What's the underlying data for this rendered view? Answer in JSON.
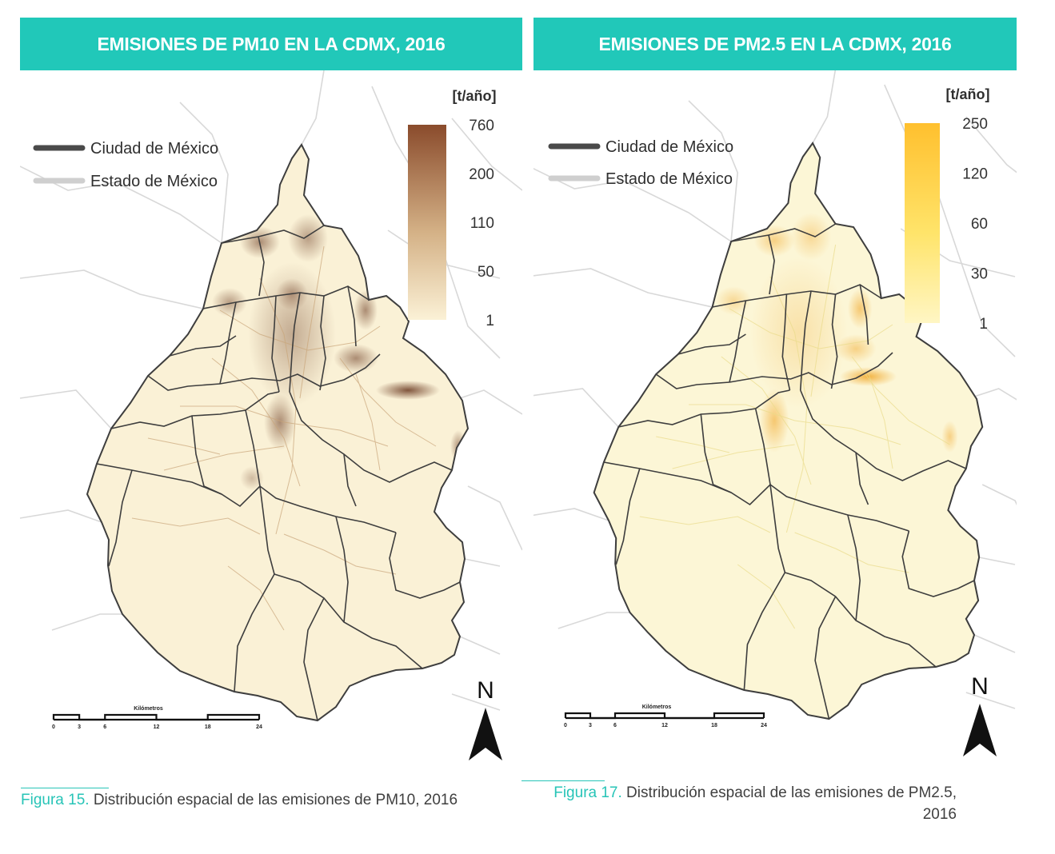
{
  "panels": [
    {
      "id": "pm10",
      "banner": "EMISIONES DE PM10 EN LA CDMX, 2016",
      "legend": {
        "cdmx": "Ciudad de México",
        "edomex": "Estado de México"
      },
      "scale": {
        "unit": "[t/año]",
        "ticks": [
          "760",
          "200",
          "110",
          "50",
          "1"
        ],
        "color_low": "#fbf1d6",
        "color_high": "#8a4b2c"
      },
      "north": "N",
      "scalebar": {
        "label": "Kilómetros",
        "ticks": [
          "0",
          "3",
          "6",
          "12",
          "18",
          "24"
        ]
      },
      "colors": {
        "fill": "#faf1d6",
        "hot": "#6b3a22",
        "border": "#3e3e3e",
        "outside": "#cfcfcf"
      }
    },
    {
      "id": "pm25",
      "banner": "EMISIONES DE PM2.5 EN LA CDMX, 2016",
      "legend": {
        "cdmx": "Ciudad de México",
        "edomex": "Estado de México"
      },
      "scale": {
        "unit": "[t/año]",
        "ticks": [
          "250",
          "120",
          "60",
          "30",
          "1"
        ],
        "color_low": "#fff6c4",
        "color_high": "#ffc02e"
      },
      "north": "N",
      "scalebar": {
        "label": "Kilómetros",
        "ticks": [
          "0",
          "3",
          "6",
          "12",
          "18",
          "24"
        ]
      },
      "colors": {
        "fill": "#fcf6d6",
        "hot": "#f0a21e",
        "border": "#3e3e3e",
        "outside": "#cfcfcf"
      }
    }
  ],
  "captions": [
    {
      "figure": "Figura 15.",
      "text": " Distribución espacial de las emisiones de PM10, 2016"
    },
    {
      "figure": "Figura 17.",
      "text": " Distribución espacial de las emisiones de PM2.5, 2016"
    }
  ],
  "icons": {
    "north": "north-arrow-icon"
  }
}
